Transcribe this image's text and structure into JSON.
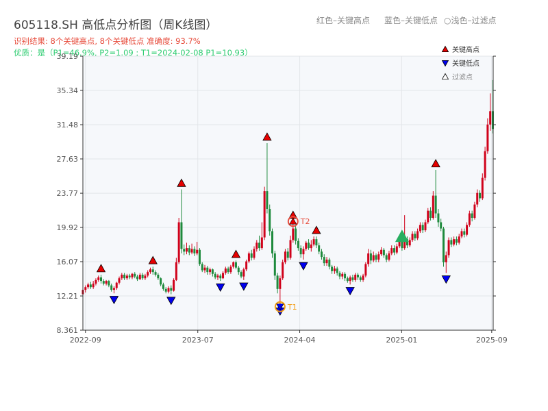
{
  "header": {
    "title": "605118.SH 高低点分析图（周K线图）",
    "result_line": "识别结果: 8个关键高点, 8个关键低点   准确度: 93.7%",
    "quality_line": "优质：是（P1=46.9%, P2=1.09 ; T1=2024-02-08 P1=10.93）",
    "legend_red": "红色–关键高点",
    "legend_blue": "蓝色–关键低点",
    "legend_hollow": "○浅色–过滤点"
  },
  "colors": {
    "up": "#d0021b",
    "down": "#1e8a3c",
    "high_marker": "#e60000",
    "low_marker": "#0000ee",
    "filtered": "#ffffff",
    "t_circle": "#f39c12",
    "t2_color": "#e74c3c",
    "plot_bg": "#f6f8fb",
    "grid": "#e3e6ea",
    "triangle_big": "#27ae60"
  },
  "chart_data": {
    "type": "candlestick",
    "y_ticks": [
      "8.361",
      "12.21",
      "16.07",
      "19.92",
      "23.77",
      "27.63",
      "31.48",
      "35.34",
      "39.19"
    ],
    "ylim": [
      8.361,
      39.19
    ],
    "x_ticks": [
      {
        "label": "2022-09",
        "date": "2022-09-01"
      },
      {
        "label": "2023-07",
        "date": "2023-07-01"
      },
      {
        "label": "2024-04",
        "date": "2024-04-01"
      },
      {
        "label": "2025-01",
        "date": "2025-01-01"
      },
      {
        "label": "2025-09",
        "date": "2025-09-01"
      }
    ],
    "xlim": [
      "2022-08-25",
      "2025-09-05"
    ],
    "legend": {
      "position": "top-right",
      "items": [
        {
          "label": "关键高点",
          "marker": "up-red"
        },
        {
          "label": "关键低点",
          "marker": "down-blue"
        },
        {
          "label": "过滤点",
          "marker": "up-hollow"
        }
      ]
    },
    "key_highs": [
      {
        "date": "2022-10-13",
        "value": 14.6
      },
      {
        "date": "2023-03-02",
        "value": 15.5
      },
      {
        "date": "2023-05-18",
        "value": 24.2
      },
      {
        "date": "2023-10-12",
        "value": 16.2
      },
      {
        "date": "2024-01-04",
        "value": 29.4
      },
      {
        "date": "2024-03-14",
        "value": 20.6
      },
      {
        "date": "2024-05-16",
        "value": 18.9
      },
      {
        "date": "2025-04-03",
        "value": 26.4
      }
    ],
    "key_lows": [
      {
        "date": "2022-11-17",
        "value": 12.5
      },
      {
        "date": "2023-04-20",
        "value": 12.4
      },
      {
        "date": "2023-08-31",
        "value": 13.9
      },
      {
        "date": "2023-11-02",
        "value": 14.0
      },
      {
        "date": "2024-02-08",
        "value": 11.2
      },
      {
        "date": "2024-04-11",
        "value": 16.3
      },
      {
        "date": "2024-08-15",
        "value": 13.5
      },
      {
        "date": "2025-05-01",
        "value": 14.8
      }
    ],
    "points": [
      {
        "name": "T1",
        "date": "2024-02-08",
        "value": 11.0
      },
      {
        "name": "T2",
        "date": "2024-03-14",
        "value": 20.6
      }
    ],
    "big_marker": {
      "date": "2025-01-02",
      "value": 18.9
    },
    "candles": [
      [
        "2022-08-25",
        12.4,
        12.9,
        11.9,
        13.1
      ],
      [
        "2022-09-01",
        12.9,
        13.2,
        12.6,
        13.4
      ],
      [
        "2022-09-08",
        13.2,
        13.5,
        13.0,
        13.7
      ],
      [
        "2022-09-15",
        13.5,
        13.2,
        13.0,
        13.8
      ],
      [
        "2022-09-22",
        13.2,
        13.6,
        13.0,
        13.9
      ],
      [
        "2022-09-29",
        13.6,
        14.0,
        13.4,
        14.2
      ],
      [
        "2022-10-06",
        14.0,
        14.3,
        13.8,
        14.5
      ],
      [
        "2022-10-13",
        14.3,
        13.9,
        13.6,
        14.6
      ],
      [
        "2022-10-20",
        13.9,
        13.6,
        13.4,
        14.1
      ],
      [
        "2022-10-27",
        13.6,
        13.9,
        13.4,
        14.0
      ],
      [
        "2022-11-03",
        13.9,
        13.4,
        13.2,
        14.0
      ],
      [
        "2022-11-10",
        13.4,
        12.9,
        12.7,
        13.6
      ],
      [
        "2022-11-17",
        12.9,
        13.1,
        12.5,
        13.3
      ],
      [
        "2022-11-24",
        13.1,
        13.7,
        12.9,
        13.8
      ],
      [
        "2022-12-01",
        13.7,
        14.2,
        13.5,
        14.4
      ],
      [
        "2022-12-08",
        14.2,
        14.6,
        14.0,
        14.8
      ],
      [
        "2022-12-15",
        14.6,
        14.2,
        14.0,
        14.8
      ],
      [
        "2022-12-22",
        14.2,
        14.5,
        14.0,
        14.7
      ],
      [
        "2022-12-29",
        14.5,
        14.3,
        14.1,
        14.7
      ],
      [
        "2023-01-05",
        14.3,
        14.7,
        14.1,
        14.8
      ],
      [
        "2023-01-12",
        14.7,
        14.4,
        14.2,
        14.9
      ],
      [
        "2023-01-19",
        14.4,
        14.1,
        13.9,
        14.6
      ],
      [
        "2023-01-26",
        14.1,
        14.6,
        14.0,
        14.8
      ],
      [
        "2023-02-02",
        14.6,
        14.2,
        14.0,
        14.8
      ],
      [
        "2023-02-09",
        14.2,
        14.5,
        14.0,
        14.7
      ],
      [
        "2023-02-16",
        14.5,
        14.9,
        14.3,
        15.1
      ],
      [
        "2023-02-23",
        14.9,
        15.2,
        14.7,
        15.4
      ],
      [
        "2023-03-02",
        15.2,
        14.9,
        14.6,
        15.5
      ],
      [
        "2023-03-09",
        14.9,
        14.6,
        14.4,
        15.1
      ],
      [
        "2023-03-16",
        14.6,
        14.2,
        14.0,
        14.8
      ],
      [
        "2023-03-23",
        14.2,
        13.5,
        13.3,
        14.3
      ],
      [
        "2023-03-30",
        13.5,
        13.0,
        12.8,
        13.7
      ],
      [
        "2023-04-06",
        13.0,
        12.7,
        12.5,
        13.2
      ],
      [
        "2023-04-13",
        12.7,
        13.1,
        12.5,
        13.3
      ],
      [
        "2023-04-20",
        13.1,
        12.8,
        12.4,
        13.4
      ],
      [
        "2023-04-27",
        12.8,
        14.0,
        12.7,
        14.2
      ],
      [
        "2023-05-04",
        14.0,
        16.0,
        13.9,
        16.5
      ],
      [
        "2023-05-11",
        16.0,
        20.5,
        15.8,
        21.0
      ],
      [
        "2023-05-18",
        20.5,
        17.5,
        17.0,
        24.2
      ],
      [
        "2023-05-25",
        17.5,
        17.2,
        16.8,
        18.0
      ],
      [
        "2023-06-01",
        17.2,
        17.6,
        16.9,
        18.2
      ],
      [
        "2023-06-08",
        17.6,
        17.1,
        16.8,
        17.9
      ],
      [
        "2023-06-15",
        17.1,
        17.5,
        16.9,
        18.1
      ],
      [
        "2023-06-22",
        17.5,
        17.0,
        16.7,
        17.8
      ],
      [
        "2023-06-29",
        17.0,
        17.4,
        16.8,
        18.3
      ],
      [
        "2023-07-06",
        17.4,
        15.8,
        15.6,
        17.6
      ],
      [
        "2023-07-13",
        15.8,
        15.1,
        14.9,
        16.0
      ],
      [
        "2023-07-20",
        15.1,
        15.4,
        14.8,
        15.7
      ],
      [
        "2023-07-27",
        15.4,
        14.9,
        14.6,
        15.6
      ],
      [
        "2023-08-03",
        14.9,
        15.2,
        14.6,
        15.4
      ],
      [
        "2023-08-10",
        15.2,
        14.7,
        14.4,
        15.3
      ],
      [
        "2023-08-17",
        14.7,
        14.3,
        14.1,
        14.9
      ],
      [
        "2023-08-24",
        14.3,
        14.5,
        14.0,
        14.7
      ],
      [
        "2023-08-31",
        14.5,
        14.2,
        13.9,
        14.7
      ],
      [
        "2023-09-07",
        14.2,
        14.8,
        14.1,
        15.0
      ],
      [
        "2023-09-14",
        14.8,
        15.3,
        14.6,
        15.5
      ],
      [
        "2023-09-21",
        15.3,
        14.9,
        14.7,
        15.5
      ],
      [
        "2023-09-28",
        14.9,
        15.5,
        14.7,
        15.7
      ],
      [
        "2023-10-05",
        15.5,
        16.0,
        15.3,
        16.1
      ],
      [
        "2023-10-12",
        16.0,
        15.4,
        15.2,
        16.2
      ],
      [
        "2023-10-19",
        15.4,
        14.9,
        14.6,
        15.6
      ],
      [
        "2023-10-26",
        14.9,
        14.4,
        14.2,
        15.1
      ],
      [
        "2023-11-02",
        14.4,
        15.2,
        14.0,
        15.4
      ],
      [
        "2023-11-09",
        15.2,
        16.1,
        15.0,
        16.3
      ],
      [
        "2023-11-16",
        16.1,
        17.0,
        15.9,
        17.2
      ],
      [
        "2023-11-23",
        17.0,
        16.5,
        16.2,
        17.4
      ],
      [
        "2023-11-30",
        16.5,
        17.5,
        16.3,
        17.8
      ],
      [
        "2023-12-07",
        17.5,
        18.2,
        17.2,
        18.5
      ],
      [
        "2023-12-14",
        18.2,
        17.6,
        17.3,
        19.0
      ],
      [
        "2023-12-21",
        17.6,
        18.8,
        17.4,
        20.5
      ],
      [
        "2023-12-28",
        18.8,
        24.0,
        18.5,
        24.5
      ],
      [
        "2024-01-04",
        24.0,
        22.0,
        21.5,
        29.4
      ],
      [
        "2024-01-11",
        22.0,
        19.5,
        19.0,
        22.5
      ],
      [
        "2024-01-18",
        19.5,
        17.0,
        16.5,
        19.8
      ],
      [
        "2024-01-25",
        17.0,
        14.5,
        14.0,
        17.3
      ],
      [
        "2024-02-01",
        14.5,
        13.0,
        12.5,
        14.8
      ],
      [
        "2024-02-08",
        13.0,
        14.2,
        11.2,
        14.5
      ],
      [
        "2024-02-15",
        14.2,
        16.0,
        14.0,
        16.3
      ],
      [
        "2024-02-22",
        16.0,
        17.2,
        15.8,
        17.5
      ],
      [
        "2024-02-29",
        17.2,
        16.5,
        16.2,
        17.6
      ],
      [
        "2024-03-07",
        16.5,
        18.5,
        16.3,
        19.0
      ],
      [
        "2024-03-14",
        18.5,
        19.8,
        18.2,
        20.6
      ],
      [
        "2024-03-21",
        19.8,
        18.4,
        18.0,
        20.2
      ],
      [
        "2024-03-28",
        18.4,
        17.6,
        17.3,
        18.7
      ],
      [
        "2024-04-04",
        17.6,
        16.9,
        16.5,
        17.9
      ],
      [
        "2024-04-11",
        16.9,
        17.5,
        16.3,
        17.8
      ],
      [
        "2024-04-18",
        17.5,
        18.2,
        17.3,
        18.4
      ],
      [
        "2024-04-25",
        18.2,
        17.6,
        17.4,
        18.6
      ],
      [
        "2024-05-02",
        17.6,
        18.0,
        17.2,
        18.5
      ],
      [
        "2024-05-09",
        18.0,
        18.6,
        17.8,
        18.9
      ],
      [
        "2024-05-16",
        18.6,
        17.9,
        17.6,
        18.9
      ],
      [
        "2024-05-23",
        17.9,
        17.2,
        16.9,
        18.2
      ],
      [
        "2024-05-30",
        17.2,
        16.6,
        16.3,
        17.5
      ],
      [
        "2024-06-06",
        16.6,
        15.9,
        15.6,
        16.9
      ],
      [
        "2024-06-13",
        15.9,
        16.3,
        15.6,
        16.6
      ],
      [
        "2024-06-20",
        16.3,
        15.5,
        15.2,
        16.5
      ],
      [
        "2024-06-27",
        15.5,
        15.0,
        14.7,
        15.7
      ],
      [
        "2024-07-04",
        15.0,
        15.3,
        14.7,
        15.6
      ],
      [
        "2024-07-11",
        15.3,
        14.8,
        14.5,
        15.5
      ],
      [
        "2024-07-18",
        14.8,
        14.4,
        14.1,
        15.0
      ],
      [
        "2024-07-25",
        14.4,
        14.7,
        14.1,
        14.9
      ],
      [
        "2024-08-01",
        14.7,
        14.2,
        13.9,
        14.9
      ],
      [
        "2024-08-08",
        14.2,
        13.9,
        13.7,
        14.4
      ],
      [
        "2024-08-15",
        13.9,
        14.3,
        13.5,
        14.5
      ],
      [
        "2024-08-22",
        14.3,
        14.0,
        13.8,
        14.6
      ],
      [
        "2024-08-29",
        14.0,
        14.6,
        13.8,
        14.8
      ],
      [
        "2024-09-05",
        14.6,
        14.3,
        14.0,
        14.8
      ],
      [
        "2024-09-12",
        14.3,
        14.0,
        13.8,
        14.5
      ],
      [
        "2024-09-19",
        14.0,
        14.5,
        13.8,
        14.7
      ],
      [
        "2024-09-26",
        14.5,
        15.8,
        14.3,
        16.0
      ],
      [
        "2024-10-03",
        15.8,
        17.0,
        15.5,
        17.5
      ],
      [
        "2024-10-10",
        17.0,
        16.2,
        15.8,
        17.4
      ],
      [
        "2024-10-17",
        16.2,
        16.8,
        16.0,
        17.2
      ],
      [
        "2024-10-24",
        16.8,
        16.3,
        16.0,
        17.0
      ],
      [
        "2024-10-31",
        16.3,
        16.9,
        16.0,
        17.2
      ],
      [
        "2024-11-07",
        16.9,
        17.4,
        16.7,
        17.7
      ],
      [
        "2024-11-14",
        17.4,
        16.8,
        16.5,
        17.6
      ],
      [
        "2024-11-21",
        16.8,
        16.3,
        16.0,
        17.0
      ],
      [
        "2024-11-28",
        16.3,
        17.0,
        16.1,
        17.3
      ],
      [
        "2024-12-05",
        17.0,
        17.6,
        16.8,
        17.9
      ],
      [
        "2024-12-12",
        17.6,
        17.1,
        16.8,
        17.9
      ],
      [
        "2024-12-19",
        17.1,
        17.8,
        16.9,
        18.1
      ],
      [
        "2024-12-26",
        17.8,
        18.4,
        17.6,
        18.7
      ],
      [
        "2025-01-02",
        18.4,
        17.6,
        17.3,
        18.7
      ],
      [
        "2025-01-09",
        17.6,
        18.6,
        17.4,
        21.3
      ],
      [
        "2025-01-16",
        18.6,
        17.9,
        17.6,
        18.9
      ],
      [
        "2025-01-23",
        17.9,
        18.5,
        17.7,
        18.8
      ],
      [
        "2025-01-30",
        18.5,
        19.2,
        18.3,
        19.5
      ],
      [
        "2025-02-06",
        19.2,
        18.7,
        18.4,
        19.5
      ],
      [
        "2025-02-13",
        18.7,
        19.5,
        18.5,
        19.8
      ],
      [
        "2025-02-20",
        19.5,
        20.2,
        19.3,
        20.5
      ],
      [
        "2025-02-27",
        20.2,
        19.6,
        19.3,
        20.5
      ],
      [
        "2025-03-06",
        19.6,
        20.5,
        19.4,
        20.8
      ],
      [
        "2025-03-13",
        20.5,
        21.8,
        20.3,
        22.1
      ],
      [
        "2025-03-20",
        21.8,
        21.0,
        20.7,
        22.2
      ],
      [
        "2025-03-27",
        21.0,
        23.5,
        20.8,
        24.0
      ],
      [
        "2025-04-03",
        23.5,
        21.5,
        21.0,
        26.4
      ],
      [
        "2025-04-10",
        21.5,
        20.5,
        20.0,
        22.0
      ],
      [
        "2025-04-17",
        20.5,
        19.8,
        19.5,
        20.9
      ],
      [
        "2025-04-24",
        19.8,
        16.0,
        15.5,
        20.0
      ],
      [
        "2025-05-01",
        16.0,
        16.8,
        14.8,
        17.2
      ],
      [
        "2025-05-08",
        16.8,
        18.5,
        16.5,
        18.8
      ],
      [
        "2025-05-15",
        18.5,
        18.0,
        17.7,
        18.8
      ],
      [
        "2025-05-22",
        18.0,
        18.6,
        17.8,
        18.9
      ],
      [
        "2025-05-29",
        18.6,
        18.2,
        17.9,
        18.9
      ],
      [
        "2025-06-05",
        18.2,
        18.9,
        18.0,
        19.2
      ],
      [
        "2025-06-12",
        18.9,
        19.5,
        18.7,
        19.8
      ],
      [
        "2025-06-19",
        19.5,
        19.1,
        18.8,
        19.8
      ],
      [
        "2025-06-26",
        19.1,
        20.2,
        18.9,
        20.5
      ],
      [
        "2025-07-03",
        20.2,
        21.5,
        20.0,
        21.8
      ],
      [
        "2025-07-10",
        21.5,
        21.0,
        20.6,
        21.8
      ],
      [
        "2025-07-17",
        21.0,
        22.5,
        20.8,
        22.8
      ],
      [
        "2025-07-24",
        22.5,
        23.8,
        22.2,
        24.2
      ],
      [
        "2025-07-31",
        23.8,
        23.2,
        22.8,
        24.1
      ],
      [
        "2025-08-07",
        23.2,
        25.5,
        23.0,
        26.0
      ],
      [
        "2025-08-14",
        25.5,
        28.5,
        25.2,
        29.0
      ],
      [
        "2025-08-21",
        28.5,
        31.5,
        28.2,
        32.2
      ],
      [
        "2025-08-28",
        31.5,
        33.0,
        30.8,
        35.0
      ],
      [
        "2025-09-04",
        33.0,
        31.0,
        30.5,
        36.5
      ]
    ]
  }
}
